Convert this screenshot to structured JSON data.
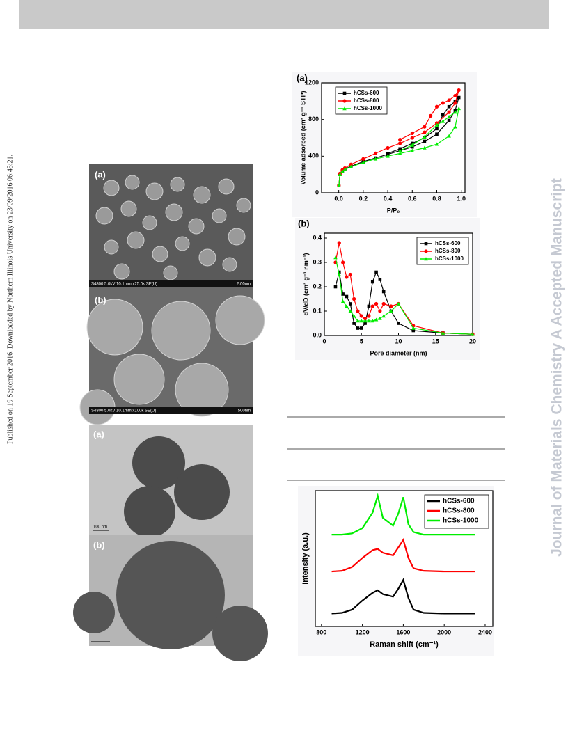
{
  "sidebar_text": "Published on 19 September 2016. Downloaded by Northern Illinois University on 23/09/2016 06:45:21.",
  "watermark": "Journal of Materials Chemistry A Accepted Manuscript",
  "images": [
    {
      "label": "(a)",
      "caption_left": "S4800 5.0kV 10.1mm x25.0k SE(U)",
      "caption_right": "2.00um"
    },
    {
      "label": "(b)",
      "caption_left": "S4800 5.0kV 10.1mm x100k SE(U)",
      "caption_right": "500nm"
    },
    {
      "label": "(a)",
      "scale_label": "100 nm"
    },
    {
      "label": "(b)"
    }
  ],
  "chart_data": [
    {
      "type": "line",
      "panel_label": "(a)",
      "x_label": "P/P₀",
      "y_label": "Volume adsorbed (cm³ g⁻¹ STP)",
      "xlim": [
        -0.14,
        1.03
      ],
      "ylim": [
        0,
        1200
      ],
      "xticks": [
        {
          "value": 0,
          "label": "0.0"
        },
        {
          "value": 0.2,
          "label": "0.2"
        },
        {
          "value": 0.4,
          "label": "0.4"
        },
        {
          "value": 0.6,
          "label": "0.6"
        },
        {
          "value": 0.8,
          "label": "0.8"
        },
        {
          "value": 1,
          "label": "1.0"
        }
      ],
      "yticks": [
        0,
        400,
        800,
        1200
      ],
      "legend": "upper left",
      "series": [
        {
          "name": "hCSs-600",
          "color": "#000000",
          "marker": "square",
          "x": [
            0.001,
            0.01,
            0.03,
            0.05,
            0.1,
            0.2,
            0.3,
            0.4,
            0.5,
            0.6,
            0.7,
            0.8,
            0.9,
            0.95,
            0.98,
            0.95,
            0.9,
            0.85,
            0.8,
            0.7,
            0.6,
            0.5,
            0.4
          ],
          "values": [
            80,
            200,
            240,
            260,
            290,
            340,
            380,
            420,
            460,
            500,
            560,
            640,
            790,
            900,
            1040,
            1000,
            940,
            850,
            700,
            600,
            540,
            480,
            430
          ]
        },
        {
          "name": "hCSs-800",
          "color": "#ff0000",
          "marker": "circle",
          "x": [
            0.001,
            0.01,
            0.03,
            0.05,
            0.1,
            0.2,
            0.3,
            0.4,
            0.5,
            0.6,
            0.7,
            0.8,
            0.9,
            0.95,
            0.98,
            0.95,
            0.9,
            0.85,
            0.8,
            0.75,
            0.7,
            0.6,
            0.5
          ],
          "values": [
            80,
            210,
            250,
            270,
            310,
            370,
            430,
            490,
            540,
            600,
            660,
            760,
            880,
            980,
            1120,
            1060,
            1010,
            980,
            940,
            840,
            720,
            650,
            580
          ]
        },
        {
          "name": "hCSs-1000",
          "color": "#00ee00",
          "marker": "triangle",
          "x": [
            0.001,
            0.01,
            0.03,
            0.05,
            0.1,
            0.2,
            0.3,
            0.4,
            0.5,
            0.6,
            0.7,
            0.8,
            0.9,
            0.95,
            0.98,
            0.95,
            0.9,
            0.85,
            0.8,
            0.7,
            0.6,
            0.5
          ],
          "values": [
            80,
            200,
            235,
            255,
            285,
            330,
            370,
            400,
            430,
            460,
            490,
            530,
            620,
            720,
            920,
            880,
            830,
            780,
            740,
            610,
            520,
            460
          ]
        }
      ]
    },
    {
      "type": "line",
      "panel_label": "(b)",
      "x_label": "Pore diameter (nm)",
      "y_label": "dV/dD (cm³ g⁻¹ nm⁻¹)",
      "xlim": [
        0,
        20
      ],
      "ylim": [
        0,
        0.42
      ],
      "xticks": [
        0,
        5,
        10,
        15,
        20
      ],
      "yticks": [
        {
          "value": 0,
          "label": "0.0"
        },
        0.1,
        0.2,
        0.3,
        0.4
      ],
      "legend": "upper right",
      "x": [
        1.5,
        2,
        2.5,
        3,
        3.5,
        4,
        4.5,
        5,
        5.5,
        6,
        6.5,
        7,
        7.5,
        8,
        9,
        10,
        12,
        16,
        20
      ],
      "series": [
        {
          "name": "hCSs-600",
          "color": "#000000",
          "marker": "square",
          "values": [
            0.2,
            0.26,
            0.17,
            0.16,
            0.13,
            0.05,
            0.03,
            0.03,
            0.05,
            0.12,
            0.22,
            0.26,
            0.23,
            0.18,
            0.1,
            0.05,
            0.02,
            0.01,
            0.005
          ]
        },
        {
          "name": "hCSs-800",
          "color": "#ff0000",
          "marker": "circle",
          "values": [
            0.3,
            0.38,
            0.3,
            0.24,
            0.25,
            0.15,
            0.1,
            0.08,
            0.07,
            0.08,
            0.12,
            0.13,
            0.1,
            0.13,
            0.12,
            0.13,
            0.04,
            0.01,
            0.005
          ]
        },
        {
          "name": "hCSs-1000",
          "color": "#00ee00",
          "marker": "triangle",
          "values": [
            0.32,
            0.25,
            0.14,
            0.12,
            0.1,
            0.08,
            0.06,
            0.06,
            0.06,
            0.06,
            0.06,
            0.065,
            0.07,
            0.08,
            0.1,
            0.13,
            0.03,
            0.01,
            0.005
          ]
        }
      ]
    },
    {
      "type": "line",
      "x_label": "Raman shift (cm⁻¹)",
      "y_label": "Intensity (a.u.)",
      "xlim": [
        740,
        2475
      ],
      "ylim": [
        0,
        10.5
      ],
      "xticks": [
        800,
        1200,
        1600,
        2000,
        2400
      ],
      "legend": "upper right",
      "x": [
        900,
        1000,
        1100,
        1200,
        1300,
        1350,
        1400,
        1500,
        1550,
        1600,
        1650,
        1700,
        1800,
        2000,
        2300
      ],
      "series": [
        {
          "name": "hCSs-600",
          "color": "#000000",
          "values": [
            1.0,
            1.05,
            1.3,
            2.0,
            2.6,
            2.8,
            2.5,
            2.3,
            2.9,
            3.6,
            2.2,
            1.3,
            1.05,
            1.0,
            1.0
          ]
        },
        {
          "name": "hCSs-800",
          "color": "#ff0000",
          "values": [
            4.25,
            4.3,
            4.6,
            5.3,
            5.9,
            6.0,
            5.7,
            5.5,
            6.1,
            6.7,
            5.3,
            4.5,
            4.3,
            4.25,
            4.25
          ]
        },
        {
          "name": "hCSs-1000",
          "color": "#00ee00",
          "values": [
            7.1,
            7.1,
            7.2,
            7.6,
            8.8,
            10.1,
            8.4,
            7.8,
            8.7,
            10.0,
            7.9,
            7.3,
            7.1,
            7.1,
            7.1
          ]
        }
      ]
    }
  ]
}
